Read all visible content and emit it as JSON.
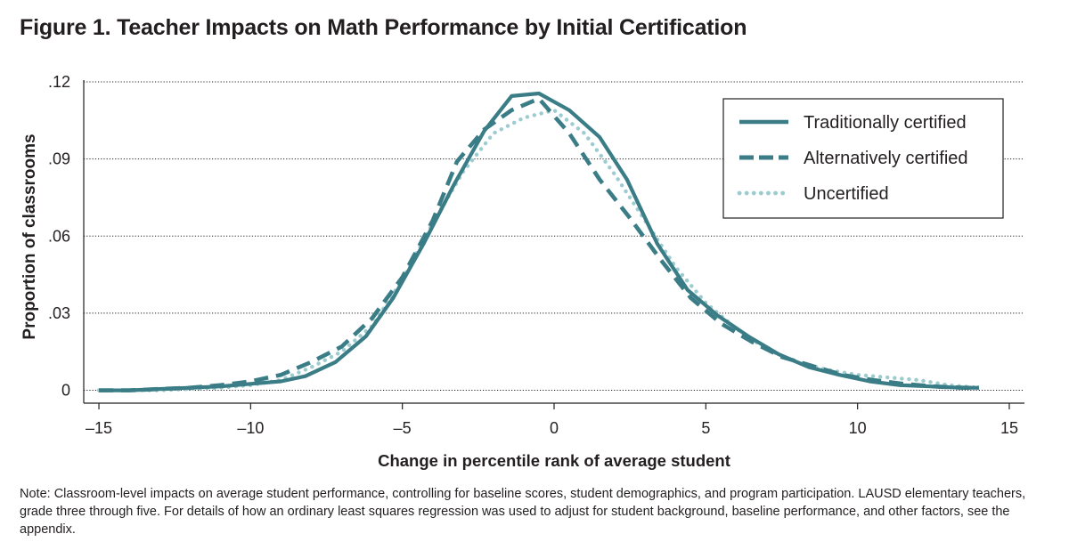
{
  "figure": {
    "title": "Figure 1. Teacher Impacts on Math Performance by Initial Certification",
    "note_label": "Note:",
    "note_text": "Classroom-level impacts on average student performance, controlling for baseline scores, student demographics, and program participation. LAUSD elementary teachers, grade three through five. For details of how an ordinary least squares regression was used to adjust for student background, baseline performance, and other factors, see the appendix."
  },
  "colors": {
    "teal": "#3a7d86",
    "light_teal": "#9ccbd0",
    "grid": "#231f20",
    "text": "#231f20"
  },
  "chart_data": {
    "type": "line",
    "title": "",
    "xlabel": "Change in percentile rank of average student",
    "ylabel": "Proportion of classrooms",
    "xlim": [
      -15.5,
      15.5
    ],
    "ylim": [
      -0.005,
      0.12
    ],
    "x_ticks": [
      -15,
      -10,
      -5,
      0,
      5,
      10,
      15
    ],
    "x_tick_labels": [
      "–15",
      "–10",
      "–5",
      "0",
      "5",
      "10",
      "15"
    ],
    "y_ticks": [
      0,
      0.03,
      0.06,
      0.09,
      0.12
    ],
    "y_tick_labels": [
      "0",
      ".03",
      ".06",
      ".09",
      ".12"
    ],
    "grid": "horizontal dotted",
    "legend_position": "top-right",
    "series": [
      {
        "name": "Traditionally certified",
        "style": "solid",
        "color": "#3a7d86",
        "x": [
          -15,
          -14,
          -13,
          -12,
          -11,
          -10,
          -9,
          -8.2,
          -7.2,
          -6.2,
          -5.3,
          -4.3,
          -3.3,
          -2.3,
          -1.4,
          -0.5,
          0.5,
          1.5,
          2.4,
          3.4,
          4.4,
          5.4,
          6.4,
          7.4,
          8.4,
          9.4,
          10.4,
          11.4,
          12.4,
          13.4,
          14.0
        ],
        "y": [
          0,
          0,
          0.0005,
          0.001,
          0.0015,
          0.0025,
          0.0035,
          0.0055,
          0.011,
          0.021,
          0.036,
          0.057,
          0.08,
          0.101,
          0.1145,
          0.1155,
          0.109,
          0.0985,
          0.082,
          0.057,
          0.039,
          0.029,
          0.021,
          0.014,
          0.009,
          0.006,
          0.0035,
          0.002,
          0.0015,
          0.001,
          0.001
        ]
      },
      {
        "name": "Alternatively certified",
        "style": "dashed",
        "color": "#3a7d86",
        "x": [
          -15,
          -14,
          -13,
          -12,
          -11,
          -10,
          -9,
          -8,
          -7,
          -6,
          -5,
          -4,
          -3.2,
          -2.3,
          -1.4,
          -0.5,
          0.5,
          1.5,
          2.5,
          3.5,
          4.5,
          5.5,
          6.5,
          7.5,
          8.5,
          9.5,
          10.5,
          11.5,
          12.5,
          13.5,
          14.0
        ],
        "y": [
          0,
          0,
          0.0005,
          0.001,
          0.002,
          0.0035,
          0.006,
          0.011,
          0.017,
          0.028,
          0.044,
          0.066,
          0.089,
          0.1015,
          0.109,
          0.1135,
          0.1,
          0.082,
          0.067,
          0.051,
          0.036,
          0.026,
          0.019,
          0.013,
          0.0095,
          0.006,
          0.004,
          0.0025,
          0.0015,
          0.001,
          0.001
        ]
      },
      {
        "name": "Uncertified",
        "style": "dotted",
        "color": "#9ccbd0",
        "x": [
          -15,
          -14,
          -13,
          -12,
          -11,
          -10,
          -9,
          -8,
          -7,
          -6,
          -5,
          -4,
          -3,
          -2,
          -1,
          0,
          1,
          2,
          3,
          4,
          5,
          6,
          7,
          8,
          9,
          10,
          11,
          12,
          13,
          14
        ],
        "y": [
          0,
          0,
          0,
          0.0005,
          0.001,
          0.002,
          0.004,
          0.009,
          0.015,
          0.025,
          0.043,
          0.065,
          0.085,
          0.1,
          0.106,
          0.109,
          0.1,
          0.084,
          0.066,
          0.048,
          0.034,
          0.024,
          0.016,
          0.011,
          0.008,
          0.006,
          0.005,
          0.004,
          0.002,
          0.001
        ]
      }
    ]
  }
}
